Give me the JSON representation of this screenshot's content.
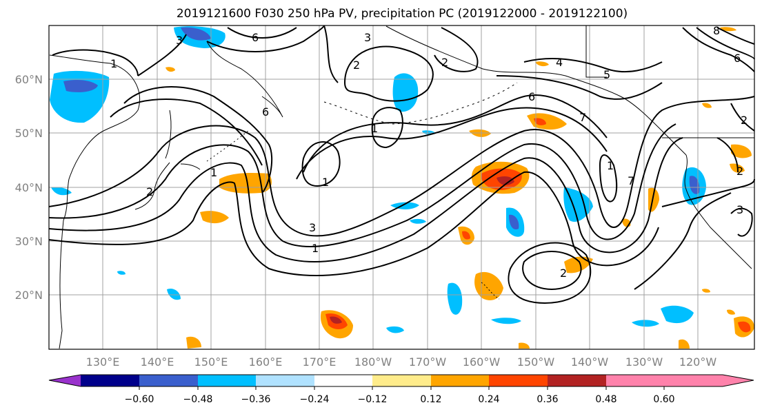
{
  "title": "2019121600 F030 250 hPa PV, precipitation PC (2019122000 - 2019122100)",
  "lat_labels": [
    "60°N",
    "50°N",
    "40°N",
    "30°N",
    "20°N"
  ],
  "lon_labels": [
    "130°E",
    "140°E",
    "150°E",
    "160°E",
    "170°E",
    "180°W",
    "170°W",
    "160°W",
    "150°W",
    "140°W",
    "130°W",
    "120°W"
  ],
  "colorbar": {
    "colors": [
      "#9932cc",
      "#00008b",
      "#3a5fcd",
      "#00bfff",
      "#b0e2ff",
      "#ffffff",
      "#ffec8b",
      "#ffa500",
      "#ff4500",
      "#b22222",
      "#ff82ab"
    ],
    "tick_labels": [
      "−0.60",
      "−0.48",
      "−0.36",
      "−0.24",
      "−0.12",
      "0.12",
      "0.24",
      "0.36",
      "0.48",
      "0.60"
    ]
  },
  "contour_labels": [
    "1",
    "1",
    "1",
    "1",
    "1",
    "1",
    "2",
    "2",
    "2",
    "2",
    "2",
    "3",
    "3",
    "3",
    "4",
    "5",
    "6",
    "6",
    "6",
    "7",
    "7",
    "8",
    "6",
    "2",
    "3"
  ],
  "colors": {
    "contour": "#000000",
    "grid": "#a0a0a0",
    "coast": "#000000"
  }
}
